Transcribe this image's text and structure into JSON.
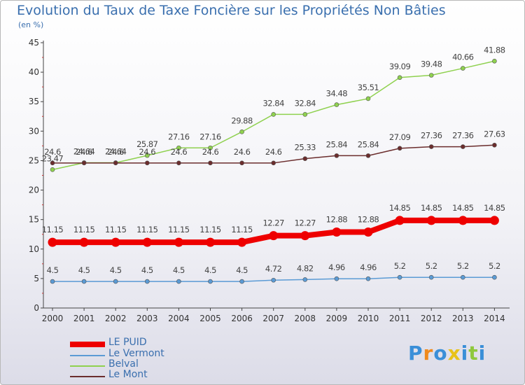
{
  "title": "Evolution du Taux de Taxe Foncière sur les Propriétés Non Bâties",
  "unit_label": "(en %)",
  "logo_text": "Proxiti",
  "chart_data": {
    "type": "line",
    "title": "Evolution du Taux de Taxe Foncière sur les Propriétés Non Bâties",
    "ylabel": "(en %)",
    "xlabel": "",
    "ylim": [
      0,
      45
    ],
    "yticks": [
      0,
      5,
      10,
      15,
      20,
      25,
      30,
      35,
      40,
      45
    ],
    "grid": false,
    "legend_position": "bottom-left",
    "x": [
      "2000",
      "2001",
      "2002",
      "2003",
      "2004",
      "2005",
      "2006",
      "2007",
      "2008",
      "2009",
      "2010",
      "2011",
      "2012",
      "2013",
      "2014"
    ],
    "series": [
      {
        "name": "LE PUID",
        "color": "#ee0000",
        "values": [
          11.15,
          11.15,
          11.15,
          11.15,
          11.15,
          11.15,
          11.15,
          12.27,
          12.27,
          12.88,
          12.88,
          14.85,
          14.85,
          14.85,
          14.85
        ],
        "labels": [
          "11.15",
          "11.15",
          "11.15",
          "11.15",
          "11.15",
          "11.15",
          "11.15",
          "12.27",
          "12.27",
          "12.88",
          "12.88",
          "14.85",
          "14.85",
          "14.85",
          "14.85"
        ]
      },
      {
        "name": "Le Vermont",
        "color": "#5b9bd5",
        "values": [
          4.5,
          4.5,
          4.5,
          4.5,
          4.5,
          4.5,
          4.5,
          4.72,
          4.82,
          4.96,
          4.96,
          5.2,
          5.2,
          5.2,
          5.2
        ],
        "labels": [
          "4.5",
          "4.5",
          "4.5",
          "4.5",
          "4.5",
          "4.5",
          "4.5",
          "4.72",
          "4.82",
          "4.96",
          "4.96",
          "5.2",
          "5.2",
          "5.2",
          "5.2"
        ]
      },
      {
        "name": "Belval",
        "color": "#8fd14f",
        "values": [
          23.47,
          24.64,
          24.64,
          25.87,
          27.16,
          27.16,
          29.88,
          32.84,
          32.84,
          34.48,
          35.51,
          39.09,
          39.48,
          40.66,
          41.88
        ],
        "labels": [
          "23.47",
          "24.64",
          "24.64",
          "25.87",
          "27.16",
          "27.16",
          "29.88",
          "32.84",
          "32.84",
          "34.48",
          "35.51",
          "39.09",
          "39.48",
          "40.66",
          "41.88"
        ]
      },
      {
        "name": "Le Mont",
        "color": "#6b2d2d",
        "values": [
          24.6,
          24.6,
          24.6,
          24.6,
          24.6,
          24.6,
          24.6,
          24.6,
          25.33,
          25.84,
          25.84,
          27.09,
          27.36,
          27.36,
          27.63
        ],
        "labels": [
          "24.6",
          "24.6",
          "24.6",
          "24.6",
          "24.6",
          "24.6",
          "24.6",
          "24.6",
          "25.33",
          "25.84",
          "25.84",
          "27.09",
          "27.36",
          "27.36",
          "27.63"
        ]
      }
    ]
  }
}
